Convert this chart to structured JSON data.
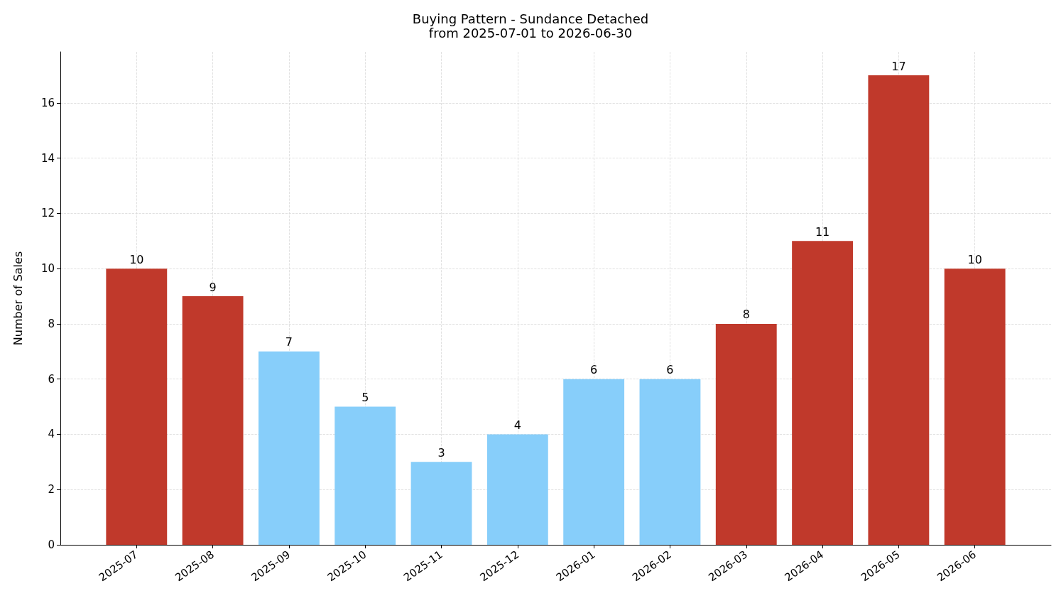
{
  "chart_data": {
    "type": "bar",
    "title": "Buying Pattern - Sundance Detached",
    "subtitle": "from 2025-07-01 to 2026-06-30",
    "ylabel": "Number of Sales",
    "categories": [
      "2025-07",
      "2025-08",
      "2025-09",
      "2025-10",
      "2025-11",
      "2025-12",
      "2026-01",
      "2026-02",
      "2026-03",
      "2026-04",
      "2026-05",
      "2026-06"
    ],
    "values": [
      10,
      9,
      7,
      5,
      3,
      4,
      6,
      6,
      8,
      11,
      17,
      10
    ],
    "colors": [
      "#c0392b",
      "#c0392b",
      "#87cefa",
      "#87cefa",
      "#87cefa",
      "#87cefa",
      "#87cefa",
      "#87cefa",
      "#c0392b",
      "#c0392b",
      "#c0392b",
      "#c0392b"
    ],
    "ylim": [
      0,
      17.85
    ],
    "yticks": [
      0,
      2,
      4,
      6,
      8,
      10,
      12,
      14,
      16
    ],
    "grid": true,
    "data_labels": true
  }
}
